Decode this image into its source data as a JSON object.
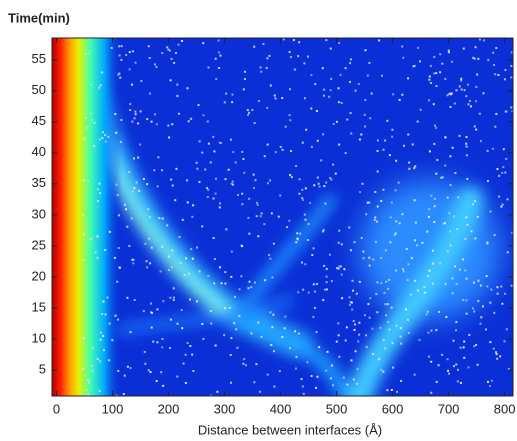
{
  "chart_data": {
    "type": "heatmap",
    "title": "Time(min)",
    "x_label": "Distance between  interfaces (Å)",
    "xlim": [
      -8,
      815
    ],
    "xticks": [
      0,
      100,
      200,
      300,
      400,
      500,
      600,
      700,
      800
    ],
    "ylim": [
      0.8,
      58.5
    ],
    "yticks": [
      5,
      10,
      15,
      20,
      25,
      30,
      35,
      40,
      45,
      50,
      55
    ]
  }
}
